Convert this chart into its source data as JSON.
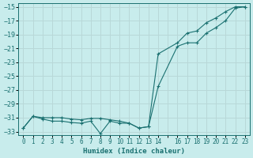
{
  "xlabel": "Humidex (Indice chaleur)",
  "bg_color": "#c8ecec",
  "line_color": "#1a7070",
  "grid_color": "#b8d8d8",
  "xlim": [
    -0.5,
    23.5
  ],
  "ylim": [
    -33.5,
    -14.5
  ],
  "yticks": [
    -33,
    -31,
    -29,
    -27,
    -25,
    -23,
    -21,
    -19,
    -17,
    -15
  ],
  "xtick_pos": [
    0,
    1,
    2,
    3,
    4,
    5,
    6,
    7,
    8,
    9,
    10,
    11,
    12,
    13,
    14,
    15,
    16,
    17,
    18,
    19,
    20,
    21,
    22,
    23
  ],
  "xtick_labels": [
    "0",
    "1",
    "2",
    "3",
    "4",
    "5",
    "6",
    "7",
    "8",
    "9",
    "10",
    "11",
    "12",
    "13",
    "14",
    "",
    "16",
    "17",
    "18",
    "19",
    "20",
    "21",
    "22",
    "23"
  ],
  "line1_x": [
    0,
    1,
    2,
    3,
    4,
    5,
    6,
    7,
    8,
    9,
    10,
    11,
    12,
    13,
    14,
    16,
    17,
    18,
    19,
    20,
    21,
    22,
    23
  ],
  "line1_y": [
    -32.5,
    -30.8,
    -31.2,
    -31.5,
    -31.5,
    -31.7,
    -31.8,
    -31.5,
    -33.3,
    -31.5,
    -31.8,
    -31.8,
    -32.5,
    -32.3,
    -26.5,
    -20.7,
    -20.2,
    -20.2,
    -18.8,
    -18.0,
    -17.0,
    -15.2,
    -15.0
  ],
  "line2_x": [
    0,
    1,
    2,
    3,
    4,
    5,
    6,
    7,
    8,
    9,
    10,
    11,
    12,
    13,
    14,
    16,
    17,
    18,
    19,
    20,
    21,
    22,
    23
  ],
  "line2_y": [
    -32.5,
    -30.8,
    -31.0,
    -31.0,
    -31.0,
    -31.2,
    -31.3,
    -31.1,
    -31.1,
    -31.3,
    -31.5,
    -31.8,
    -32.5,
    -32.3,
    -21.8,
    -20.2,
    -18.8,
    -18.5,
    -17.3,
    -16.6,
    -15.7,
    -15.0,
    -15.0
  ]
}
